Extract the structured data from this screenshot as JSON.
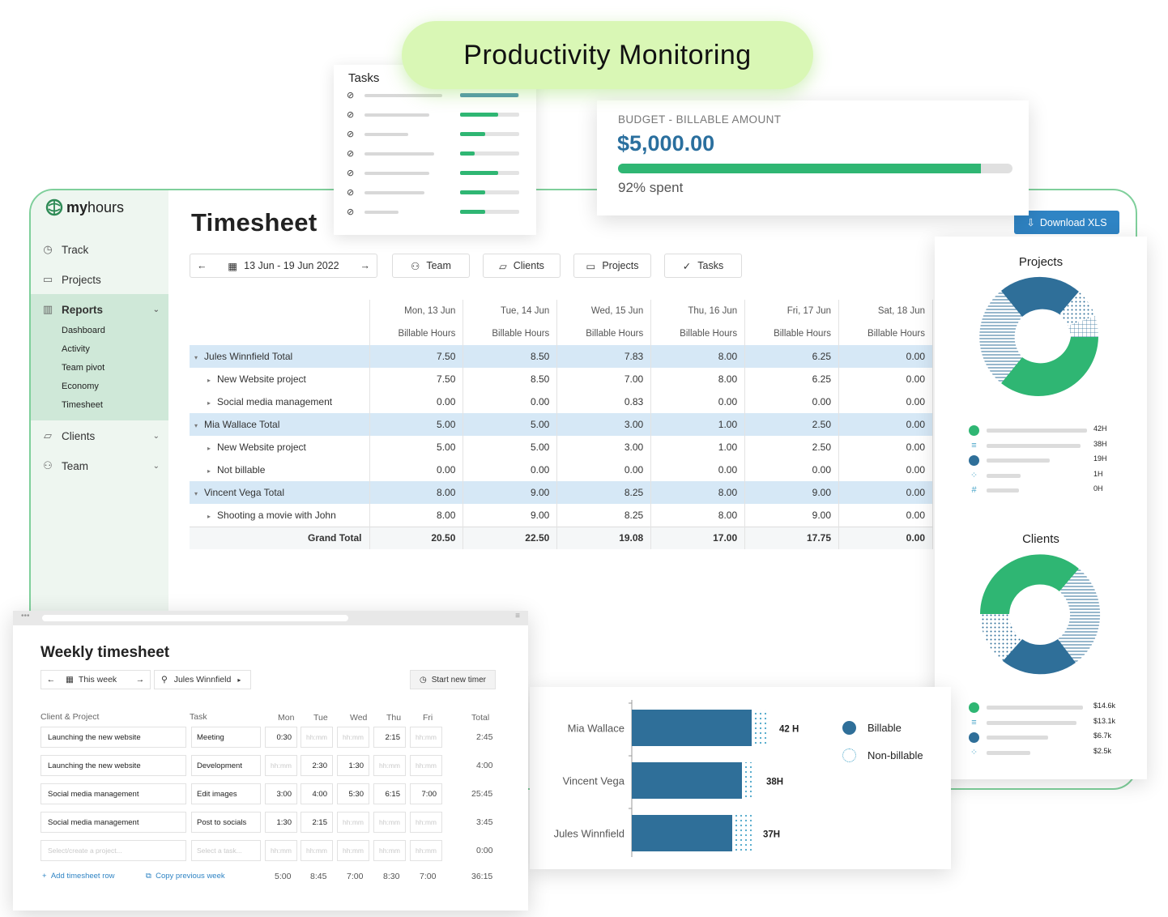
{
  "hero": {
    "title": "Productivity Monitoring"
  },
  "tasks_card": {
    "title": "Tasks",
    "progress": [
      0.98,
      0.65,
      0.42,
      0.25,
      0.65,
      0.42,
      0.42
    ]
  },
  "budget": {
    "label": "BUDGET - BILLABLE AMOUNT",
    "amount": "$5,000.00",
    "spent_text": "92% spent",
    "spent_fraction": 0.92
  },
  "app": {
    "logo": {
      "prefix": "my",
      "suffix": "hours"
    },
    "page_title": "Timesheet",
    "download_label": "Download XLS",
    "nav": {
      "track": "Track",
      "projects": "Projects",
      "reports": "Reports",
      "reports_sub": [
        "Dashboard",
        "Activity",
        "Team pivot",
        "Economy",
        "Timesheet"
      ],
      "clients": "Clients",
      "team": "Team"
    },
    "toolbar": {
      "date_range": "13 Jun - 19 Jun 2022",
      "team": "Team",
      "clients": "Clients",
      "projects": "Projects",
      "tasks": "Tasks"
    }
  },
  "timesheet": {
    "days": [
      "Mon, 13 Jun",
      "Tue, 14 Jun",
      "Wed, 15 Jun",
      "Thu, 16 Jun",
      "Fri, 17 Jun",
      "Sat, 18 Jun"
    ],
    "metric": "Billable Hours",
    "rows": [
      {
        "type": "total",
        "label": "Jules Winnfield Total",
        "values": [
          "7.50",
          "8.50",
          "7.83",
          "8.00",
          "6.25",
          "0.00"
        ]
      },
      {
        "type": "child",
        "label": "New Website project",
        "values": [
          "7.50",
          "8.50",
          "7.00",
          "8.00",
          "6.25",
          "0.00"
        ]
      },
      {
        "type": "child",
        "label": "Social media management",
        "values": [
          "0.00",
          "0.00",
          "0.83",
          "0.00",
          "0.00",
          "0.00"
        ]
      },
      {
        "type": "total",
        "label": "Mia Wallace Total",
        "values": [
          "5.00",
          "5.00",
          "3.00",
          "1.00",
          "2.50",
          "0.00"
        ]
      },
      {
        "type": "child",
        "label": "New Website project",
        "values": [
          "5.00",
          "5.00",
          "3.00",
          "1.00",
          "2.50",
          "0.00"
        ]
      },
      {
        "type": "child",
        "label": "Not billable",
        "values": [
          "0.00",
          "0.00",
          "0.00",
          "0.00",
          "0.00",
          "0.00"
        ]
      },
      {
        "type": "total",
        "label": "Vincent Vega Total",
        "values": [
          "8.00",
          "9.00",
          "8.25",
          "8.00",
          "9.00",
          "0.00"
        ]
      },
      {
        "type": "child",
        "label": "Shooting a movie with John",
        "values": [
          "8.00",
          "9.00",
          "8.25",
          "8.00",
          "9.00",
          "0.00"
        ]
      }
    ],
    "grand_total": {
      "label": "Grand Total",
      "values": [
        "20.50",
        "22.50",
        "19.08",
        "17.00",
        "17.75",
        "0.00"
      ]
    }
  },
  "projects_chart": {
    "title": "Projects",
    "legend_values": [
      "42H",
      "38H",
      "19H",
      "1H",
      "0H"
    ],
    "fractions": [
      0.42,
      0.38,
      0.19,
      0.01,
      0.0
    ]
  },
  "clients_chart": {
    "title": "Clients",
    "legend_values": [
      "$14.6k",
      "$13.1k",
      "$6.7k",
      "$2.5k"
    ],
    "fractions": [
      0.396,
      0.355,
      0.181,
      0.068
    ]
  },
  "weekly": {
    "title": "Weekly timesheet",
    "this_week": "This week",
    "user": "Jules Winnfield",
    "start_timer": "Start new timer",
    "headers": {
      "client": "Client & Project",
      "task": "Task",
      "days": [
        "Mon",
        "Tue",
        "Wed",
        "Thu",
        "Fri"
      ],
      "total": "Total"
    },
    "rows": [
      {
        "project": "Launching the new website",
        "task": "Meeting",
        "values": [
          "0:30",
          "hh:mm",
          "hh:mm",
          "2:15",
          "hh:mm"
        ],
        "total": "2:45"
      },
      {
        "project": "Launching the new website",
        "task": "Development",
        "values": [
          "hh:mm",
          "2:30",
          "1:30",
          "hh:mm",
          "hh:mm"
        ],
        "total": "4:00"
      },
      {
        "project": "Social media management",
        "task": "Edit images",
        "values": [
          "3:00",
          "4:00",
          "5:30",
          "6:15",
          "7:00"
        ],
        "total": "25:45"
      },
      {
        "project": "Social media management",
        "task": "Post to socials",
        "values": [
          "1:30",
          "2:15",
          "hh:mm",
          "hh:mm",
          "hh:mm"
        ],
        "total": "3:45"
      },
      {
        "project": "Select/create a project...",
        "task": "Select a task...",
        "values": [
          "hh:mm",
          "hh:mm",
          "hh:mm",
          "hh:mm",
          "hh:mm"
        ],
        "total": "0:00"
      }
    ],
    "add_row": "Add timesheet row",
    "copy_prev": "Copy previous week",
    "day_totals": [
      "5:00",
      "8:45",
      "7:00",
      "8:30",
      "7:00"
    ],
    "grand_total": "36:15"
  },
  "chart_data": {
    "type": "bar",
    "categories": [
      "Mia Wallace",
      "Vincent Vega",
      "Jules Winnfield"
    ],
    "series": [
      {
        "name": "Billable",
        "values": [
          37,
          34,
          31
        ]
      },
      {
        "name": "Non-billable",
        "values": [
          5,
          4,
          6
        ]
      }
    ],
    "labels": [
      "42 H",
      "38H",
      "37H"
    ],
    "xlim": [
      0,
      45
    ],
    "colors": {
      "billable": "#2f6f99",
      "non_billable": "#49a6c9"
    }
  }
}
